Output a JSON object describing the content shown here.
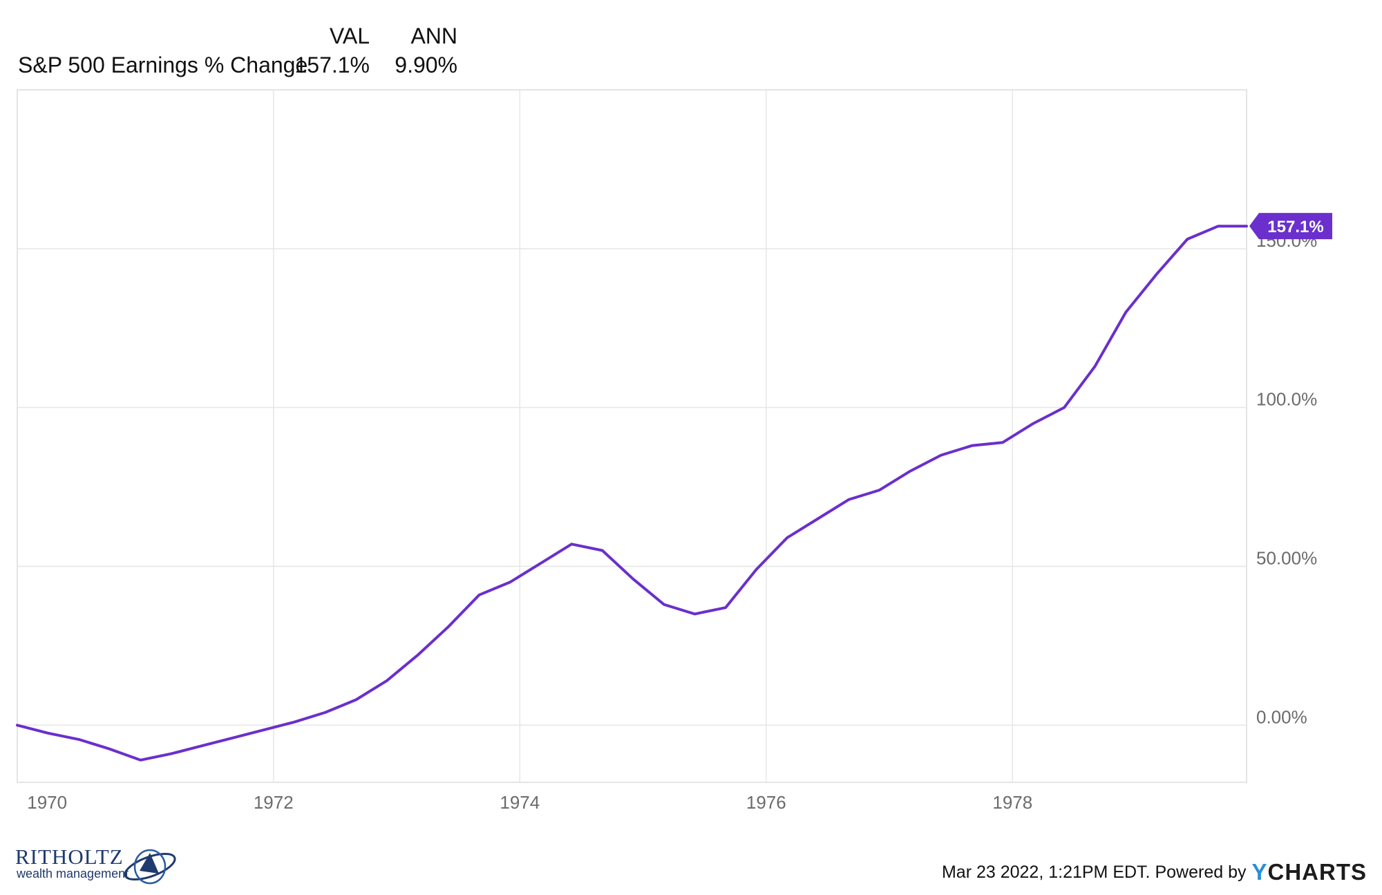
{
  "legend": {
    "col_val": "VAL",
    "col_ann": "ANN",
    "series_name": "S&P 500 Earnings % Change",
    "val": "157.1%",
    "ann": "9.90%"
  },
  "badge": "157.1%",
  "footer": {
    "timestamp": "Mar 23 2022, 1:21PM EDT. Powered by",
    "brand_y": "Y",
    "brand_rest": "CHARTS"
  },
  "logo": {
    "name": "RITHOLTZ",
    "sub": "wealth management"
  },
  "colors": {
    "line": "#6a2fcc",
    "badge": "#6a2fcc",
    "grid": "#e6e6e6",
    "brand_y": "#2a8fd8"
  },
  "chart_data": {
    "type": "line",
    "x_ticks": [
      "1970",
      "1972",
      "1974",
      "1976",
      "1978"
    ],
    "y_ticks": [
      "0.00%",
      "50.00%",
      "100.0%",
      "150.0%"
    ],
    "y_tick_values": [
      0,
      50,
      100,
      150
    ],
    "xlim": [
      1969.92,
      1979.9
    ],
    "ylim": [
      -18,
      200
    ],
    "grid": true,
    "series": [
      {
        "name": "S&P 500 Earnings % Change",
        "x": [
          1969.92,
          1970.17,
          1970.42,
          1970.67,
          1970.92,
          1971.17,
          1971.42,
          1971.67,
          1971.92,
          1972.17,
          1972.42,
          1972.67,
          1972.92,
          1973.17,
          1973.42,
          1973.67,
          1973.92,
          1974.17,
          1974.42,
          1974.67,
          1974.92,
          1975.17,
          1975.42,
          1975.67,
          1975.92,
          1976.17,
          1976.42,
          1976.67,
          1976.92,
          1977.17,
          1977.42,
          1977.67,
          1977.92,
          1978.17,
          1978.42,
          1978.67,
          1978.92,
          1979.17,
          1979.42,
          1979.67,
          1979.9
        ],
        "values": [
          0,
          -2.5,
          -4.5,
          -7.5,
          -11,
          -9,
          -6.5,
          -4,
          -1.5,
          1,
          4,
          8,
          14,
          22,
          31,
          41,
          45,
          51,
          57,
          55,
          46,
          38,
          35,
          37,
          49,
          59,
          65,
          71,
          74,
          80,
          85,
          88,
          89,
          95,
          100,
          113,
          130,
          142,
          153,
          157.1,
          157.1
        ]
      }
    ]
  }
}
